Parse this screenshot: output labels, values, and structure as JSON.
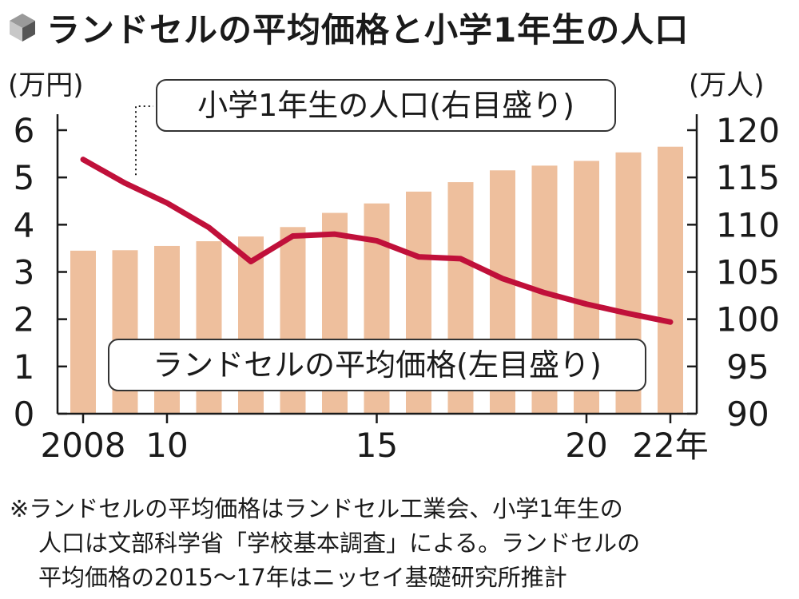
{
  "title": "ランドセルの平均価格と小学1年生の人口",
  "title_icon": "cube-icon",
  "colors": {
    "bar": "#eebf9d",
    "line": "#c0103a",
    "axis": "#1a1a1a",
    "label_box_border": "#333333"
  },
  "chart_data": {
    "type": "bar+line",
    "left_unit": "(万円)",
    "right_unit": "(万人)",
    "left_ylim": [
      0,
      6
    ],
    "left_ticks": [
      "0",
      "1",
      "2",
      "3",
      "4",
      "5",
      "6"
    ],
    "right_ylim": [
      90,
      120
    ],
    "right_ticks": [
      "90",
      "95",
      "100",
      "105",
      "110",
      "115",
      "120"
    ],
    "x_years": [
      2008,
      2009,
      2010,
      2011,
      2012,
      2013,
      2014,
      2015,
      2016,
      2017,
      2018,
      2019,
      2020,
      2021,
      2022
    ],
    "x_tick_labels": [
      {
        "year": 2008,
        "label": "2008"
      },
      {
        "year": 2010,
        "label": "10"
      },
      {
        "year": 2015,
        "label": "15"
      },
      {
        "year": 2020,
        "label": "20"
      },
      {
        "year": 2022,
        "label": "22年"
      }
    ],
    "series": [
      {
        "name": "ランドセルの平均価格",
        "label_text": "ランドセルの平均価格(左目盛り)",
        "type": "bar",
        "axis": "left",
        "values": [
          3.45,
          3.46,
          3.55,
          3.65,
          3.75,
          3.95,
          4.25,
          4.45,
          4.7,
          4.9,
          5.15,
          5.25,
          5.35,
          5.53,
          5.65
        ]
      },
      {
        "name": "小学1年生の人口",
        "label_text": "小学1年生の人口(右目盛り)",
        "type": "line",
        "axis": "right",
        "values": [
          116.9,
          114.4,
          112.3,
          109.7,
          106.1,
          108.8,
          109.0,
          108.3,
          106.6,
          106.4,
          104.3,
          102.8,
          101.6,
          100.6,
          99.7
        ]
      }
    ]
  },
  "notes": [
    "※ランドセルの平均価格はランドセル工業会、小学1年生の",
    "人口は文部科学省「学校基本調査」による。ランドセルの",
    "平均価格の2015〜17年はニッセイ基礎研究所推計"
  ]
}
